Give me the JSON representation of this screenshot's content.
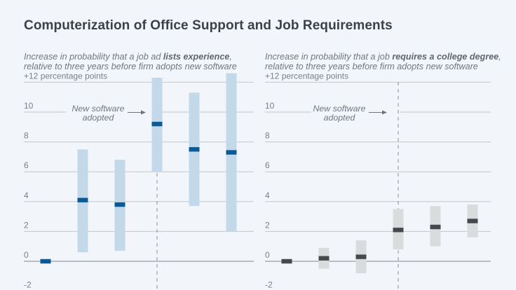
{
  "title": "Computerization of Office Support and Job Requirements",
  "chart_data": [
    {
      "type": "scatter",
      "name": "experience",
      "subtitle_prefix": "Increase in probability that a job ad ",
      "subtitle_bold": "lists experience",
      "subtitle_suffix": ",",
      "subtitle_line2": "relative to three years before firm adopts new software",
      "ylabel": "+12 percentage points",
      "ylim": [
        -2,
        12
      ],
      "yticks": [
        -2,
        0,
        2,
        4,
        6,
        8,
        10,
        12
      ],
      "ytick_labels": [
        "-2",
        "0",
        "2",
        "4",
        "6",
        "8",
        "10",
        "+12 percentage points"
      ],
      "annotation_line1": "New software",
      "annotation_line2": "adopted",
      "event_index": 3,
      "colors": {
        "estimate": "#0b5a96",
        "interval": "#c3d8e9"
      },
      "points": [
        {
          "estimate": 0.0,
          "low": null,
          "high": null
        },
        {
          "estimate": 4.1,
          "low": 0.6,
          "high": 7.5
        },
        {
          "estimate": 3.8,
          "low": 0.7,
          "high": 6.8
        },
        {
          "estimate": 9.2,
          "low": 6.0,
          "high": 12.3
        },
        {
          "estimate": 7.5,
          "low": 3.7,
          "high": 11.3
        },
        {
          "estimate": 7.3,
          "low": 2.0,
          "high": 12.6
        }
      ]
    },
    {
      "type": "scatter",
      "name": "college",
      "subtitle_prefix": "Increase in probability that a job ",
      "subtitle_bold": "requires a college degree",
      "subtitle_suffix": ",",
      "subtitle_line2": "relative to three years before firm adopts new software",
      "ylabel": "+12 percentage points",
      "ylim": [
        -2,
        12
      ],
      "yticks": [
        -2,
        0,
        2,
        4,
        6,
        8,
        10,
        12
      ],
      "ytick_labels": [
        "-2",
        "0",
        "2",
        "4",
        "6",
        "8",
        "10",
        "+12 percentage points"
      ],
      "annotation_line1": "New software",
      "annotation_line2": "adopted",
      "event_index": 3,
      "colors": {
        "estimate": "#45484c",
        "interval": "#d9dbdd"
      },
      "points": [
        {
          "estimate": 0.0,
          "low": null,
          "high": null
        },
        {
          "estimate": 0.2,
          "low": -0.5,
          "high": 0.9
        },
        {
          "estimate": 0.3,
          "low": -0.8,
          "high": 1.4
        },
        {
          "estimate": 2.1,
          "low": 0.8,
          "high": 3.5
        },
        {
          "estimate": 2.3,
          "low": 1.0,
          "high": 3.7
        },
        {
          "estimate": 2.7,
          "low": 1.6,
          "high": 3.8
        }
      ]
    }
  ]
}
